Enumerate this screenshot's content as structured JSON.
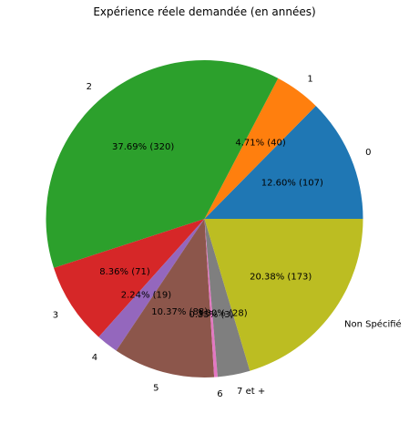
{
  "chart_data": {
    "type": "pie",
    "title": "Expérience réele demandée (en années)",
    "categories": [
      "0",
      "1",
      "2",
      "3",
      "4",
      "5",
      "6",
      "7 et +",
      "Non Spécifié"
    ],
    "values": [
      107,
      40,
      320,
      71,
      19,
      88,
      3,
      28,
      173
    ],
    "percent_labels": [
      "12.60%  (107)",
      "4.71%  (40)",
      "37.69%  (320)",
      "8.36%  (71)",
      "2.24%  (19)",
      "10.37%  (88)",
      "0.35%  (3)",
      "3.30%  (28)",
      "20.38%  (173)"
    ],
    "colors": [
      "#1f77b4",
      "#ff7f0e",
      "#2ca02c",
      "#d62728",
      "#9467bd",
      "#8c564b",
      "#e377c2",
      "#7f7f7f",
      "#bcbd22"
    ],
    "start_angle_deg": 0,
    "direction": "counterclockwise",
    "legend": "none"
  }
}
